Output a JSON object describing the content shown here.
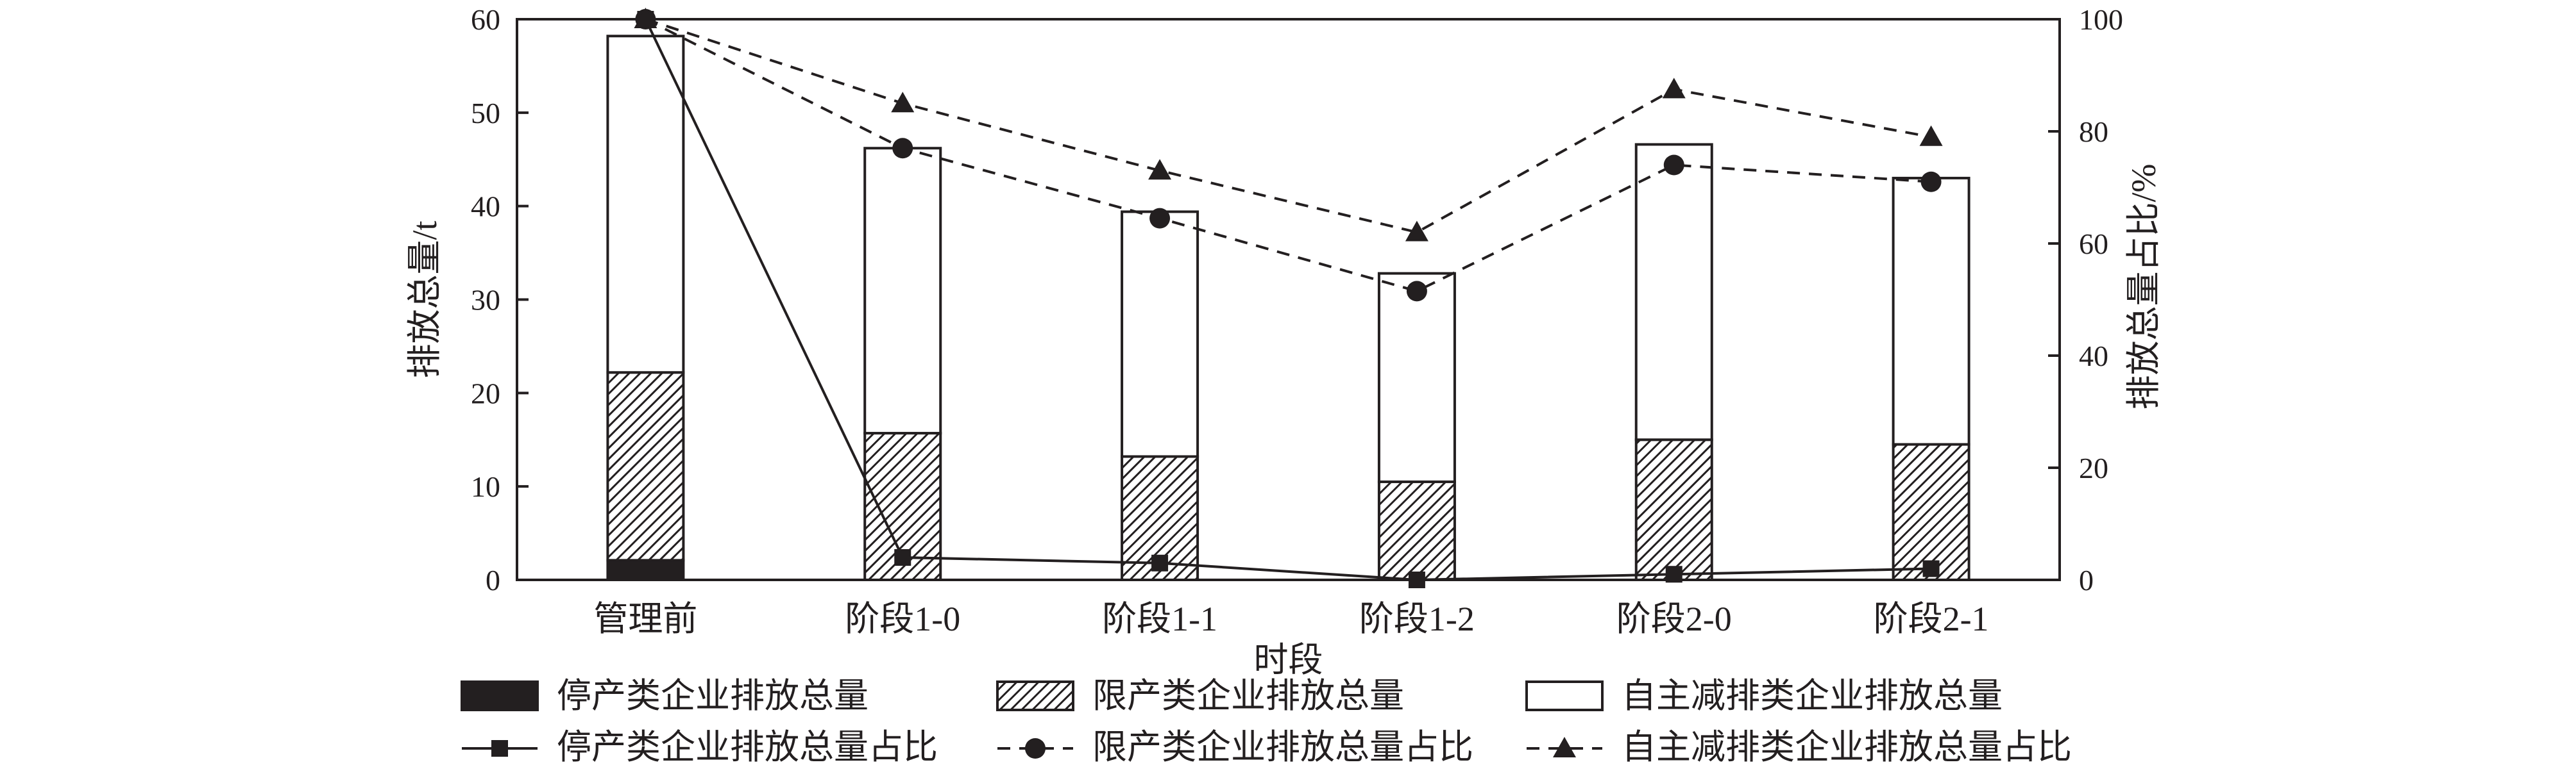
{
  "chart_data": {
    "type": "bar",
    "stacked": true,
    "title": "",
    "xlabel": "时段",
    "ylabel_left": "排放总量/t",
    "ylabel_right": "排放总量占比/%",
    "categories": [
      "管理前",
      "阶段1-0",
      "阶段1-1",
      "阶段1-2",
      "阶段2-0",
      "阶段2-1"
    ],
    "ylim_left": [
      0,
      60
    ],
    "yticks_left": [
      "0",
      "10",
      "20",
      "30",
      "40",
      "50",
      "60"
    ],
    "ylim_right": [
      0,
      100
    ],
    "yticks_right": [
      "0",
      "20",
      "40",
      "60",
      "80",
      "100"
    ],
    "grid": false,
    "legend_position": "bottom",
    "bar_series": [
      {
        "name": "停产类企业排放总量",
        "pattern": "solid-black",
        "values": [
          2.1,
          0,
          0,
          0,
          0,
          0
        ]
      },
      {
        "name": "限产类企业排放总量",
        "pattern": "hatched",
        "values": [
          20.1,
          15.7,
          13.2,
          10.5,
          15.0,
          14.5
        ]
      },
      {
        "name": "自主减排类企业排放总量",
        "pattern": "white",
        "values": [
          36.0,
          30.5,
          26.2,
          22.3,
          31.6,
          28.5
        ]
      }
    ],
    "line_series": [
      {
        "name": "停产类企业排放总量占比",
        "style": "solid",
        "marker": "square",
        "values": [
          100,
          4,
          3,
          0,
          1,
          2
        ]
      },
      {
        "name": "限产类企业排放总量占比",
        "style": "dashed",
        "marker": "circle",
        "values": [
          100,
          77,
          64.5,
          51.5,
          74,
          71
        ]
      },
      {
        "name": "自主减排类企业排放总量占比",
        "style": "dashed",
        "marker": "triangle",
        "values": [
          100,
          85,
          73,
          62,
          87.5,
          79
        ]
      }
    ],
    "colors": {
      "ink": "#231f20",
      "background": "#ffffff"
    }
  }
}
